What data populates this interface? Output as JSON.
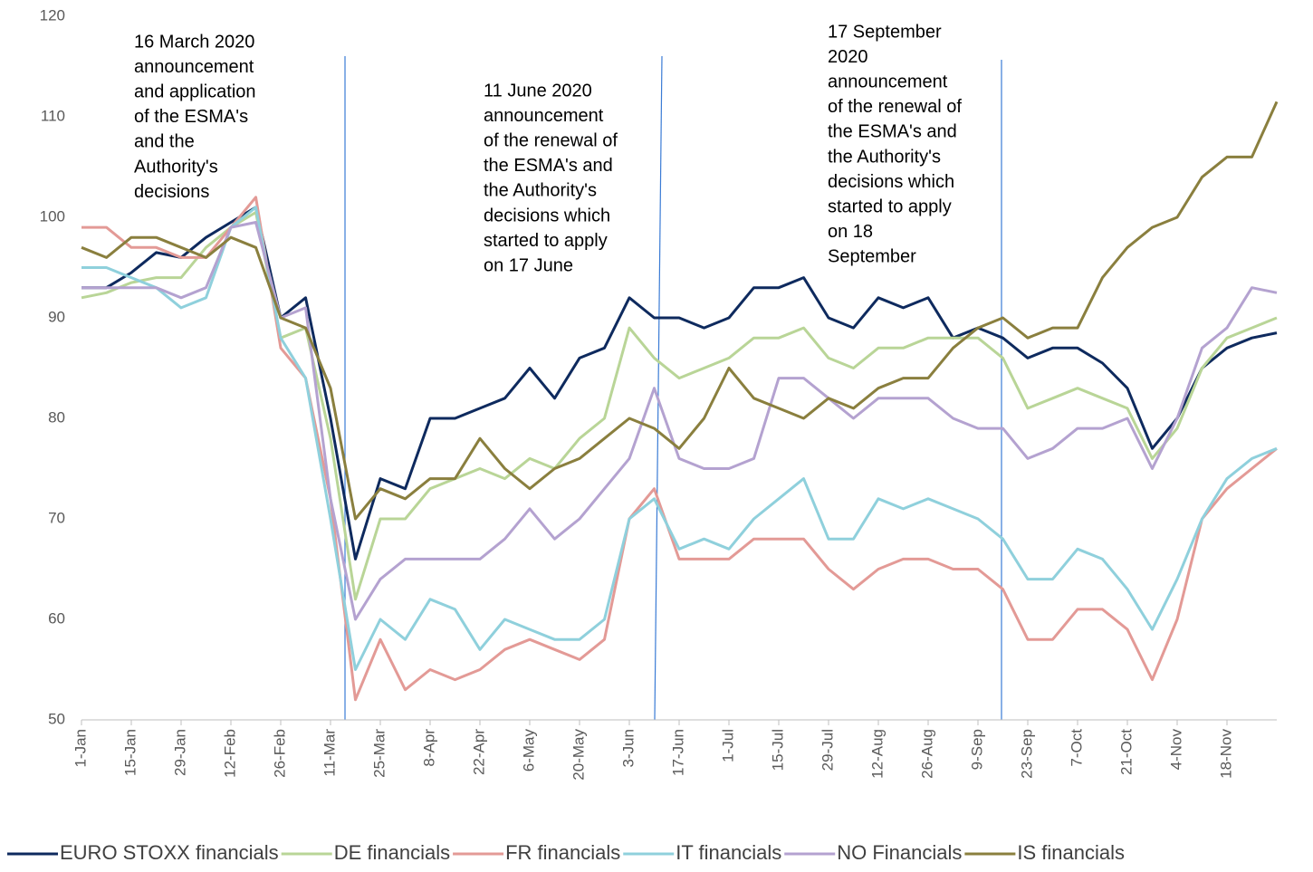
{
  "chart_data": {
    "type": "line",
    "categories": [
      "1-Jan",
      null,
      "15-Jan",
      null,
      "29-Jan",
      null,
      "12-Feb",
      null,
      "26-Feb",
      null,
      "11-Mar",
      null,
      "25-Mar",
      null,
      "8-Apr",
      null,
      "22-Apr",
      null,
      "6-May",
      null,
      "20-May",
      null,
      "3-Jun",
      null,
      "17-Jun",
      null,
      "1-Jul",
      null,
      "15-Jul",
      null,
      "29-Jul",
      null,
      "12-Aug",
      null,
      "26-Aug",
      null,
      "9-Sep",
      null,
      "23-Sep",
      null,
      "7-Oct",
      null,
      "21-Oct",
      null,
      "4-Nov",
      null,
      "18-Nov",
      null,
      null
    ],
    "ylim": [
      50,
      120
    ],
    "yticks": [
      50,
      60,
      70,
      80,
      90,
      100,
      110,
      120
    ],
    "grid": false,
    "legend": "bottom",
    "series": [
      {
        "name": "EURO STOXX financials",
        "color": "#0e2a5e",
        "values": [
          93,
          93,
          94.5,
          96.5,
          96,
          98,
          99.5,
          101,
          90,
          92,
          80,
          66,
          74,
          73,
          80,
          80,
          81,
          82,
          85,
          82,
          86,
          87,
          92,
          90,
          90,
          89,
          90,
          93,
          93,
          94,
          90,
          89,
          92,
          91,
          92,
          88,
          89,
          88,
          86,
          87,
          87,
          85.5,
          83,
          77,
          80,
          85,
          87,
          88,
          88.5
        ]
      },
      {
        "name": "DE financials",
        "color": "#b9d597",
        "values": [
          92,
          92.5,
          93.5,
          94,
          94,
          97,
          99,
          100.5,
          88,
          89,
          78,
          62,
          70,
          70,
          73,
          74,
          75,
          74,
          76,
          75,
          78,
          80,
          89,
          86,
          84,
          85,
          86,
          88,
          88,
          89,
          86,
          85,
          87,
          87,
          88,
          88,
          88,
          86,
          81,
          82,
          83,
          82,
          81,
          76,
          79,
          85,
          88,
          89,
          90
        ]
      },
      {
        "name": "FR financials",
        "color": "#e39a96",
        "values": [
          99,
          99,
          97,
          97,
          96,
          96,
          99,
          102,
          87,
          84,
          72,
          52,
          58,
          53,
          55,
          54,
          55,
          57,
          58,
          57,
          56,
          58,
          70,
          73,
          66,
          66,
          66,
          68,
          68,
          68,
          65,
          63,
          65,
          66,
          66,
          65,
          65,
          63,
          58,
          58,
          61,
          61,
          59,
          54,
          60,
          70,
          73,
          75,
          77
        ]
      },
      {
        "name": "IT financials",
        "color": "#8fd0dc",
        "values": [
          95,
          95,
          94,
          93,
          91,
          92,
          99,
          101,
          88,
          84,
          70,
          55,
          60,
          58,
          62,
          61,
          57,
          60,
          59,
          58,
          58,
          60,
          70,
          72,
          67,
          68,
          67,
          70,
          72,
          74,
          68,
          68,
          72,
          71,
          72,
          71,
          70,
          68,
          64,
          64,
          67,
          66,
          63,
          59,
          64,
          70,
          74,
          76,
          77
        ]
      },
      {
        "name": "NO Financials",
        "color": "#b4a2d0",
        "values": [
          93,
          93,
          93,
          93,
          92,
          93,
          99,
          99.5,
          90,
          91,
          72,
          60,
          64,
          66,
          66,
          66,
          66,
          68,
          71,
          68,
          70,
          73,
          76,
          83,
          76,
          75,
          75,
          76,
          84,
          84,
          82,
          80,
          82,
          82,
          82,
          80,
          79,
          79,
          76,
          77,
          79,
          79,
          80,
          75,
          80,
          87,
          89,
          93,
          92.5
        ]
      },
      {
        "name": "IS financials",
        "color": "#8a7f3e",
        "values": [
          97,
          96,
          98,
          98,
          97,
          96,
          98,
          97,
          90,
          89,
          83,
          70,
          73,
          72,
          74,
          74,
          78,
          75,
          73,
          75,
          76,
          78,
          80,
          79,
          77,
          80,
          85,
          82,
          81,
          80,
          82,
          81,
          83,
          84,
          84,
          87,
          89,
          90,
          88,
          89,
          89,
          94,
          97,
          99,
          100,
          104,
          106,
          106,
          111.5
        ]
      }
    ],
    "annotations": [
      {
        "lines": [
          "16 March 2020",
          "announcement",
          "and application",
          "of the ESMA's",
          "and the",
          "Authority's",
          "decisions"
        ]
      },
      {
        "lines": [
          "11 June 2020",
          "announcement",
          "of the renewal of",
          "the ESMA's and",
          "the Authority's",
          "decisions which",
          "started to apply",
          "on 17 June"
        ]
      },
      {
        "lines": [
          "17 September",
          "2020",
          "announcement",
          "of the renewal of",
          "the ESMA's and",
          "the Authority's",
          "decisions which",
          "started to apply",
          "on 18",
          "September"
        ]
      }
    ]
  }
}
